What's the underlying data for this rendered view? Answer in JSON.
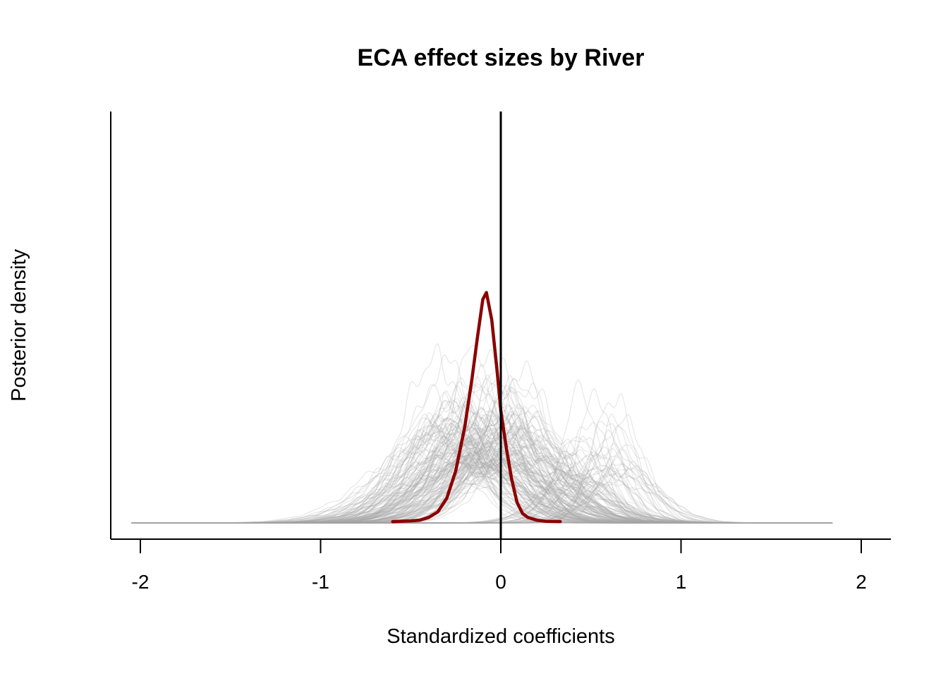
{
  "chart_data": {
    "type": "line",
    "title": "ECA effect sizes by River",
    "xlabel": "Standardized coefficients",
    "ylabel": "Posterior density",
    "xlim": [
      -2.15,
      2.15
    ],
    "ylim": [
      0,
      3.0
    ],
    "x_ticks": [
      -2,
      -1,
      0,
      1,
      2
    ],
    "x_tick_labels": [
      "-2",
      "-1",
      "0",
      "1",
      "2"
    ],
    "y_ticks_shown": false,
    "grid": false,
    "legend": "none",
    "reference_line": {
      "x": 0,
      "color": "#000000"
    },
    "colors": {
      "draws": "#A9A9A9",
      "mean": "#8B0000",
      "reference": "#000000"
    },
    "series": [
      {
        "role": "overall-mean",
        "color": "#8B0000",
        "x": [
          -0.6,
          -0.5,
          -0.45,
          -0.4,
          -0.35,
          -0.3,
          -0.25,
          -0.2,
          -0.16,
          -0.13,
          -0.1,
          -0.08,
          -0.05,
          -0.02,
          0.0,
          0.03,
          0.06,
          0.09,
          0.12,
          0.15,
          0.2,
          0.25,
          0.33
        ],
        "y": [
          0.01,
          0.015,
          0.02,
          0.04,
          0.08,
          0.18,
          0.38,
          0.7,
          1.05,
          1.35,
          1.63,
          1.68,
          1.48,
          1.1,
          0.82,
          0.55,
          0.32,
          0.15,
          0.07,
          0.04,
          0.02,
          0.012,
          0.01
        ]
      }
    ],
    "draw_groups": [
      {
        "role": "posterior-draws",
        "color": "#A9A9A9",
        "count": 150,
        "mean": -0.1,
        "sd": 0.3,
        "peak": 0.9
      },
      {
        "role": "posterior-draws",
        "color": "#A9A9A9",
        "count": 40,
        "mean": 0.55,
        "sd": 0.19,
        "peak": 0.68
      }
    ]
  }
}
